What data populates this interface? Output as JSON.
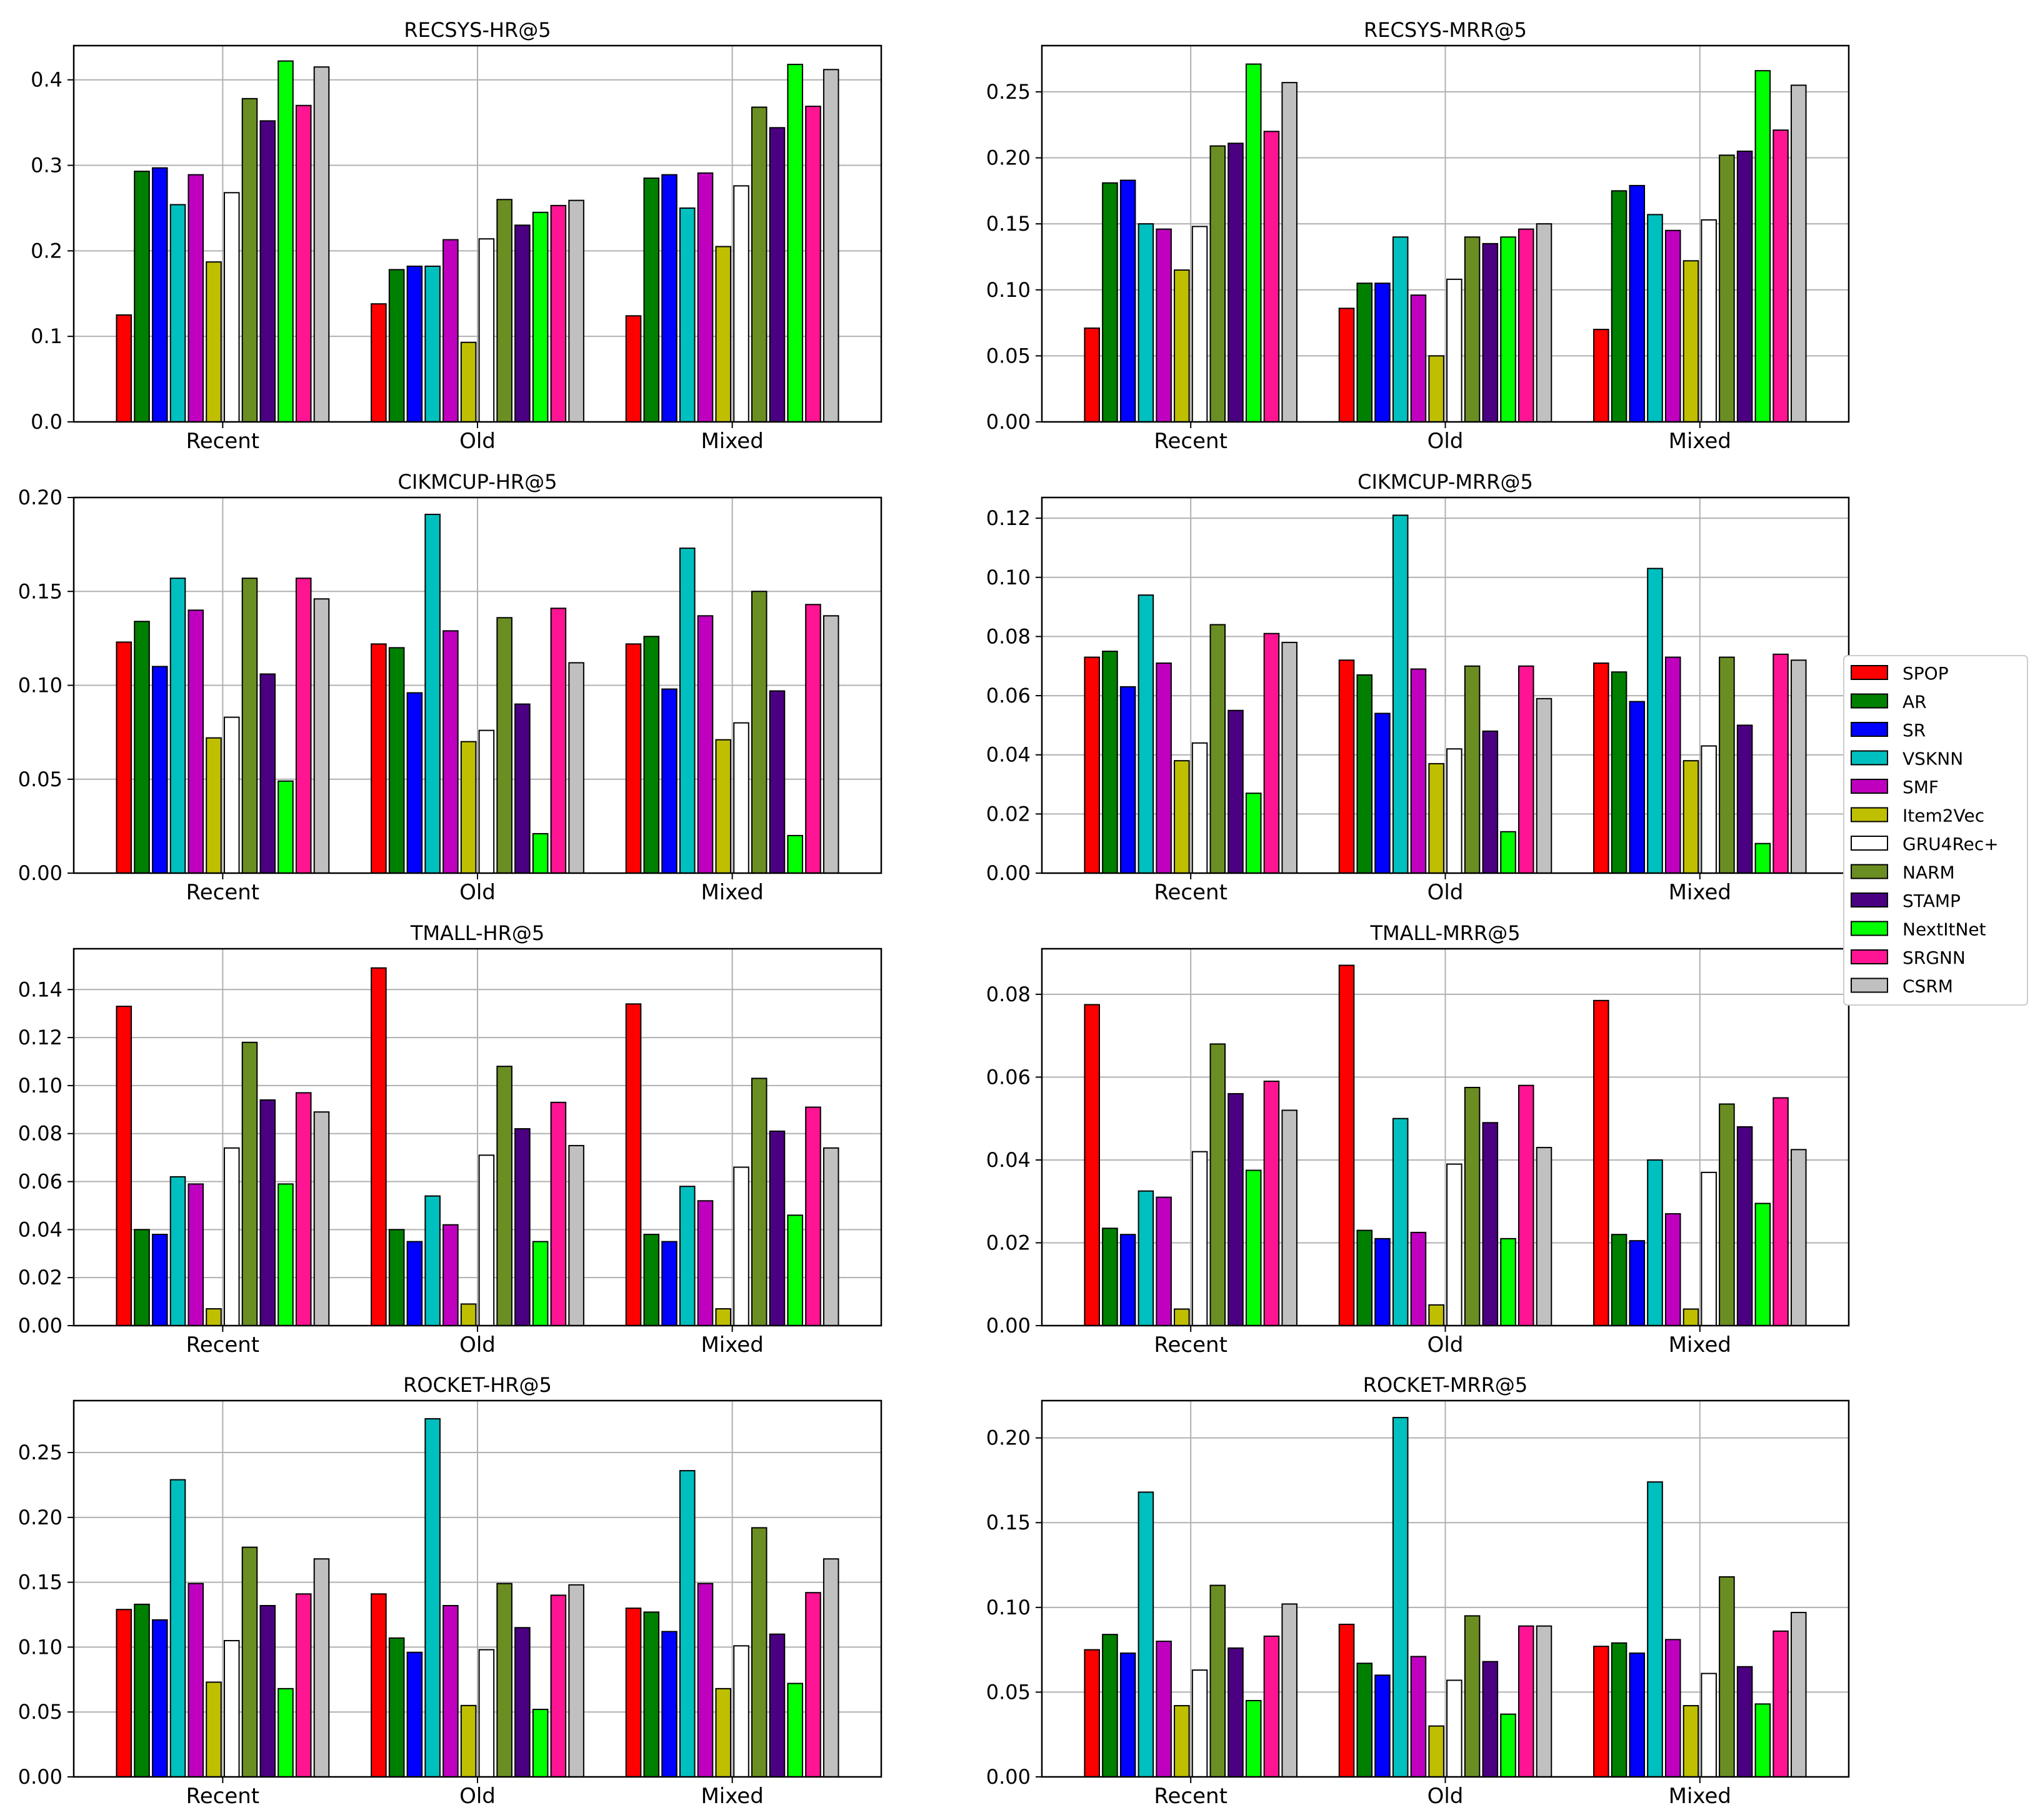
{
  "legend": [
    {
      "name": "SPOP",
      "color": "#ff0000"
    },
    {
      "name": "AR",
      "color": "#008000"
    },
    {
      "name": "SR",
      "color": "#0000ff"
    },
    {
      "name": "VSKNN",
      "color": "#00bfbf"
    },
    {
      "name": "SMF",
      "color": "#bf00bf"
    },
    {
      "name": "Item2Vec",
      "color": "#bfbf00"
    },
    {
      "name": "GRU4Rec+",
      "color": "#ffffff"
    },
    {
      "name": "NARM",
      "color": "#6b8e23"
    },
    {
      "name": "STAMP",
      "color": "#4b0082"
    },
    {
      "name": "NextItNet",
      "color": "#00ff00"
    },
    {
      "name": "SRGNN",
      "color": "#ff1493"
    },
    {
      "name": "CSRM",
      "color": "#c0c0c0"
    }
  ],
  "chart_data": [
    {
      "type": "bar",
      "title": "RECSYS-HR@5",
      "categories": [
        "Recent",
        "Old",
        "Mixed"
      ],
      "ylim": [
        0,
        0.44
      ],
      "yticks": [
        "0.0",
        "0.1",
        "0.2",
        "0.3",
        "0.4"
      ],
      "ytick_values": [
        0,
        0.1,
        0.2,
        0.3,
        0.4
      ],
      "series": [
        {
          "name": "SPOP",
          "values": [
            0.125,
            0.138,
            0.124
          ]
        },
        {
          "name": "AR",
          "values": [
            0.293,
            0.178,
            0.285
          ]
        },
        {
          "name": "SR",
          "values": [
            0.297,
            0.182,
            0.289
          ]
        },
        {
          "name": "VSKNN",
          "values": [
            0.254,
            0.182,
            0.25
          ]
        },
        {
          "name": "SMF",
          "values": [
            0.289,
            0.213,
            0.291
          ]
        },
        {
          "name": "Item2Vec",
          "values": [
            0.187,
            0.093,
            0.205
          ]
        },
        {
          "name": "GRU4Rec+",
          "values": [
            0.268,
            0.214,
            0.276
          ]
        },
        {
          "name": "NARM",
          "values": [
            0.378,
            0.26,
            0.368
          ]
        },
        {
          "name": "STAMP",
          "values": [
            0.352,
            0.23,
            0.344
          ]
        },
        {
          "name": "NextItNet",
          "values": [
            0.422,
            0.245,
            0.418
          ]
        },
        {
          "name": "SRGNN",
          "values": [
            0.37,
            0.253,
            0.369
          ]
        },
        {
          "name": "CSRM",
          "values": [
            0.415,
            0.259,
            0.412
          ]
        }
      ]
    },
    {
      "type": "bar",
      "title": "RECSYS-MRR@5",
      "categories": [
        "Recent",
        "Old",
        "Mixed"
      ],
      "ylim": [
        0,
        0.285
      ],
      "yticks": [
        "0.00",
        "0.05",
        "0.10",
        "0.15",
        "0.20",
        "0.25"
      ],
      "ytick_values": [
        0,
        0.05,
        0.1,
        0.15,
        0.2,
        0.25
      ],
      "series": [
        {
          "name": "SPOP",
          "values": [
            0.071,
            0.086,
            0.07
          ]
        },
        {
          "name": "AR",
          "values": [
            0.181,
            0.105,
            0.175
          ]
        },
        {
          "name": "SR",
          "values": [
            0.183,
            0.105,
            0.179
          ]
        },
        {
          "name": "VSKNN",
          "values": [
            0.15,
            0.14,
            0.157
          ]
        },
        {
          "name": "SMF",
          "values": [
            0.146,
            0.096,
            0.145
          ]
        },
        {
          "name": "Item2Vec",
          "values": [
            0.115,
            0.05,
            0.122
          ]
        },
        {
          "name": "GRU4Rec+",
          "values": [
            0.148,
            0.108,
            0.153
          ]
        },
        {
          "name": "NARM",
          "values": [
            0.209,
            0.14,
            0.202
          ]
        },
        {
          "name": "STAMP",
          "values": [
            0.211,
            0.135,
            0.205
          ]
        },
        {
          "name": "NextItNet",
          "values": [
            0.271,
            0.14,
            0.266
          ]
        },
        {
          "name": "SRGNN",
          "values": [
            0.22,
            0.146,
            0.221
          ]
        },
        {
          "name": "CSRM",
          "values": [
            0.257,
            0.15,
            0.255
          ]
        }
      ]
    },
    {
      "type": "bar",
      "title": "CIKMCUP-HR@5",
      "categories": [
        "Recent",
        "Old",
        "Mixed"
      ],
      "ylim": [
        0,
        0.2
      ],
      "yticks": [
        "0.00",
        "0.05",
        "0.10",
        "0.15",
        "0.20"
      ],
      "ytick_values": [
        0,
        0.05,
        0.1,
        0.15,
        0.2
      ],
      "series": [
        {
          "name": "SPOP",
          "values": [
            0.123,
            0.122,
            0.122
          ]
        },
        {
          "name": "AR",
          "values": [
            0.134,
            0.12,
            0.126
          ]
        },
        {
          "name": "SR",
          "values": [
            0.11,
            0.096,
            0.098
          ]
        },
        {
          "name": "VSKNN",
          "values": [
            0.157,
            0.191,
            0.173
          ]
        },
        {
          "name": "SMF",
          "values": [
            0.14,
            0.129,
            0.137
          ]
        },
        {
          "name": "Item2Vec",
          "values": [
            0.072,
            0.07,
            0.071
          ]
        },
        {
          "name": "GRU4Rec+",
          "values": [
            0.083,
            0.076,
            0.08
          ]
        },
        {
          "name": "NARM",
          "values": [
            0.157,
            0.136,
            0.15
          ]
        },
        {
          "name": "STAMP",
          "values": [
            0.106,
            0.09,
            0.097
          ]
        },
        {
          "name": "NextItNet",
          "values": [
            0.049,
            0.021,
            0.02
          ]
        },
        {
          "name": "SRGNN",
          "values": [
            0.157,
            0.141,
            0.143
          ]
        },
        {
          "name": "CSRM",
          "values": [
            0.146,
            0.112,
            0.137
          ]
        }
      ]
    },
    {
      "type": "bar",
      "title": "CIKMCUP-MRR@5",
      "categories": [
        "Recent",
        "Old",
        "Mixed"
      ],
      "ylim": [
        0,
        0.127
      ],
      "yticks": [
        "0.00",
        "0.02",
        "0.04",
        "0.06",
        "0.08",
        "0.10",
        "0.12"
      ],
      "ytick_values": [
        0,
        0.02,
        0.04,
        0.06,
        0.08,
        0.1,
        0.12
      ],
      "series": [
        {
          "name": "SPOP",
          "values": [
            0.073,
            0.072,
            0.071
          ]
        },
        {
          "name": "AR",
          "values": [
            0.075,
            0.067,
            0.068
          ]
        },
        {
          "name": "SR",
          "values": [
            0.063,
            0.054,
            0.058
          ]
        },
        {
          "name": "VSKNN",
          "values": [
            0.094,
            0.121,
            0.103
          ]
        },
        {
          "name": "SMF",
          "values": [
            0.071,
            0.069,
            0.073
          ]
        },
        {
          "name": "Item2Vec",
          "values": [
            0.038,
            0.037,
            0.038
          ]
        },
        {
          "name": "GRU4Rec+",
          "values": [
            0.044,
            0.042,
            0.043
          ]
        },
        {
          "name": "NARM",
          "values": [
            0.084,
            0.07,
            0.073
          ]
        },
        {
          "name": "STAMP",
          "values": [
            0.055,
            0.048,
            0.05
          ]
        },
        {
          "name": "NextItNet",
          "values": [
            0.027,
            0.014,
            0.01
          ]
        },
        {
          "name": "SRGNN",
          "values": [
            0.081,
            0.07,
            0.074
          ]
        },
        {
          "name": "CSRM",
          "values": [
            0.078,
            0.059,
            0.072
          ]
        }
      ]
    },
    {
      "type": "bar",
      "title": "TMALL-HR@5",
      "categories": [
        "Recent",
        "Old",
        "Mixed"
      ],
      "ylim": [
        0,
        0.157
      ],
      "yticks": [
        "0.00",
        "0.02",
        "0.04",
        "0.06",
        "0.08",
        "0.10",
        "0.12",
        "0.14"
      ],
      "ytick_values": [
        0,
        0.02,
        0.04,
        0.06,
        0.08,
        0.1,
        0.12,
        0.14
      ],
      "series": [
        {
          "name": "SPOP",
          "values": [
            0.133,
            0.149,
            0.134
          ]
        },
        {
          "name": "AR",
          "values": [
            0.04,
            0.04,
            0.038
          ]
        },
        {
          "name": "SR",
          "values": [
            0.038,
            0.035,
            0.035
          ]
        },
        {
          "name": "VSKNN",
          "values": [
            0.062,
            0.054,
            0.058
          ]
        },
        {
          "name": "SMF",
          "values": [
            0.059,
            0.042,
            0.052
          ]
        },
        {
          "name": "Item2Vec",
          "values": [
            0.007,
            0.009,
            0.007
          ]
        },
        {
          "name": "GRU4Rec+",
          "values": [
            0.074,
            0.071,
            0.066
          ]
        },
        {
          "name": "NARM",
          "values": [
            0.118,
            0.108,
            0.103
          ]
        },
        {
          "name": "STAMP",
          "values": [
            0.094,
            0.082,
            0.081
          ]
        },
        {
          "name": "NextItNet",
          "values": [
            0.059,
            0.035,
            0.046
          ]
        },
        {
          "name": "SRGNN",
          "values": [
            0.097,
            0.093,
            0.091
          ]
        },
        {
          "name": "CSRM",
          "values": [
            0.089,
            0.075,
            0.074
          ]
        }
      ]
    },
    {
      "type": "bar",
      "title": "TMALL-MRR@5",
      "categories": [
        "Recent",
        "Old",
        "Mixed"
      ],
      "ylim": [
        0,
        0.091
      ],
      "yticks": [
        "0.00",
        "0.02",
        "0.04",
        "0.06",
        "0.08"
      ],
      "ytick_values": [
        0,
        0.02,
        0.04,
        0.06,
        0.08
      ],
      "series": [
        {
          "name": "SPOP",
          "values": [
            0.0775,
            0.087,
            0.0785
          ]
        },
        {
          "name": "AR",
          "values": [
            0.0235,
            0.023,
            0.022
          ]
        },
        {
          "name": "SR",
          "values": [
            0.022,
            0.021,
            0.0205
          ]
        },
        {
          "name": "VSKNN",
          "values": [
            0.0325,
            0.05,
            0.04
          ]
        },
        {
          "name": "SMF",
          "values": [
            0.031,
            0.0225,
            0.027
          ]
        },
        {
          "name": "Item2Vec",
          "values": [
            0.004,
            0.005,
            0.004
          ]
        },
        {
          "name": "GRU4Rec+",
          "values": [
            0.042,
            0.039,
            0.037
          ]
        },
        {
          "name": "NARM",
          "values": [
            0.068,
            0.0575,
            0.0535
          ]
        },
        {
          "name": "STAMP",
          "values": [
            0.056,
            0.049,
            0.048
          ]
        },
        {
          "name": "NextItNet",
          "values": [
            0.0375,
            0.021,
            0.0295
          ]
        },
        {
          "name": "SRGNN",
          "values": [
            0.059,
            0.058,
            0.055
          ]
        },
        {
          "name": "CSRM",
          "values": [
            0.052,
            0.043,
            0.0425
          ]
        }
      ]
    },
    {
      "type": "bar",
      "title": "ROCKET-HR@5",
      "categories": [
        "Recent",
        "Old",
        "Mixed"
      ],
      "ylim": [
        0,
        0.29
      ],
      "yticks": [
        "0.00",
        "0.05",
        "0.10",
        "0.15",
        "0.20",
        "0.25"
      ],
      "ytick_values": [
        0,
        0.05,
        0.1,
        0.15,
        0.2,
        0.25
      ],
      "series": [
        {
          "name": "SPOP",
          "values": [
            0.129,
            0.141,
            0.13
          ]
        },
        {
          "name": "AR",
          "values": [
            0.133,
            0.107,
            0.127
          ]
        },
        {
          "name": "SR",
          "values": [
            0.121,
            0.096,
            0.112
          ]
        },
        {
          "name": "VSKNN",
          "values": [
            0.229,
            0.276,
            0.236
          ]
        },
        {
          "name": "SMF",
          "values": [
            0.149,
            0.132,
            0.149
          ]
        },
        {
          "name": "Item2Vec",
          "values": [
            0.073,
            0.055,
            0.068
          ]
        },
        {
          "name": "GRU4Rec+",
          "values": [
            0.105,
            0.098,
            0.101
          ]
        },
        {
          "name": "NARM",
          "values": [
            0.177,
            0.149,
            0.192
          ]
        },
        {
          "name": "STAMP",
          "values": [
            0.132,
            0.115,
            0.11
          ]
        },
        {
          "name": "NextItNet",
          "values": [
            0.068,
            0.052,
            0.072
          ]
        },
        {
          "name": "SRGNN",
          "values": [
            0.141,
            0.14,
            0.142
          ]
        },
        {
          "name": "CSRM",
          "values": [
            0.168,
            0.148,
            0.168
          ]
        }
      ]
    },
    {
      "type": "bar",
      "title": "ROCKET-MRR@5",
      "categories": [
        "Recent",
        "Old",
        "Mixed"
      ],
      "ylim": [
        0,
        0.222
      ],
      "yticks": [
        "0.00",
        "0.05",
        "0.10",
        "0.15",
        "0.20"
      ],
      "ytick_values": [
        0,
        0.05,
        0.1,
        0.15,
        0.2
      ],
      "series": [
        {
          "name": "SPOP",
          "values": [
            0.075,
            0.09,
            0.077
          ]
        },
        {
          "name": "AR",
          "values": [
            0.084,
            0.067,
            0.079
          ]
        },
        {
          "name": "SR",
          "values": [
            0.073,
            0.06,
            0.073
          ]
        },
        {
          "name": "VSKNN",
          "values": [
            0.168,
            0.212,
            0.174
          ]
        },
        {
          "name": "SMF",
          "values": [
            0.08,
            0.071,
            0.081
          ]
        },
        {
          "name": "Item2Vec",
          "values": [
            0.042,
            0.03,
            0.042
          ]
        },
        {
          "name": "GRU4Rec+",
          "values": [
            0.063,
            0.057,
            0.061
          ]
        },
        {
          "name": "NARM",
          "values": [
            0.113,
            0.095,
            0.118
          ]
        },
        {
          "name": "STAMP",
          "values": [
            0.076,
            0.068,
            0.065
          ]
        },
        {
          "name": "NextItNet",
          "values": [
            0.045,
            0.037,
            0.043
          ]
        },
        {
          "name": "SRGNN",
          "values": [
            0.083,
            0.089,
            0.086
          ]
        },
        {
          "name": "CSRM",
          "values": [
            0.102,
            0.089,
            0.097
          ]
        }
      ]
    }
  ]
}
